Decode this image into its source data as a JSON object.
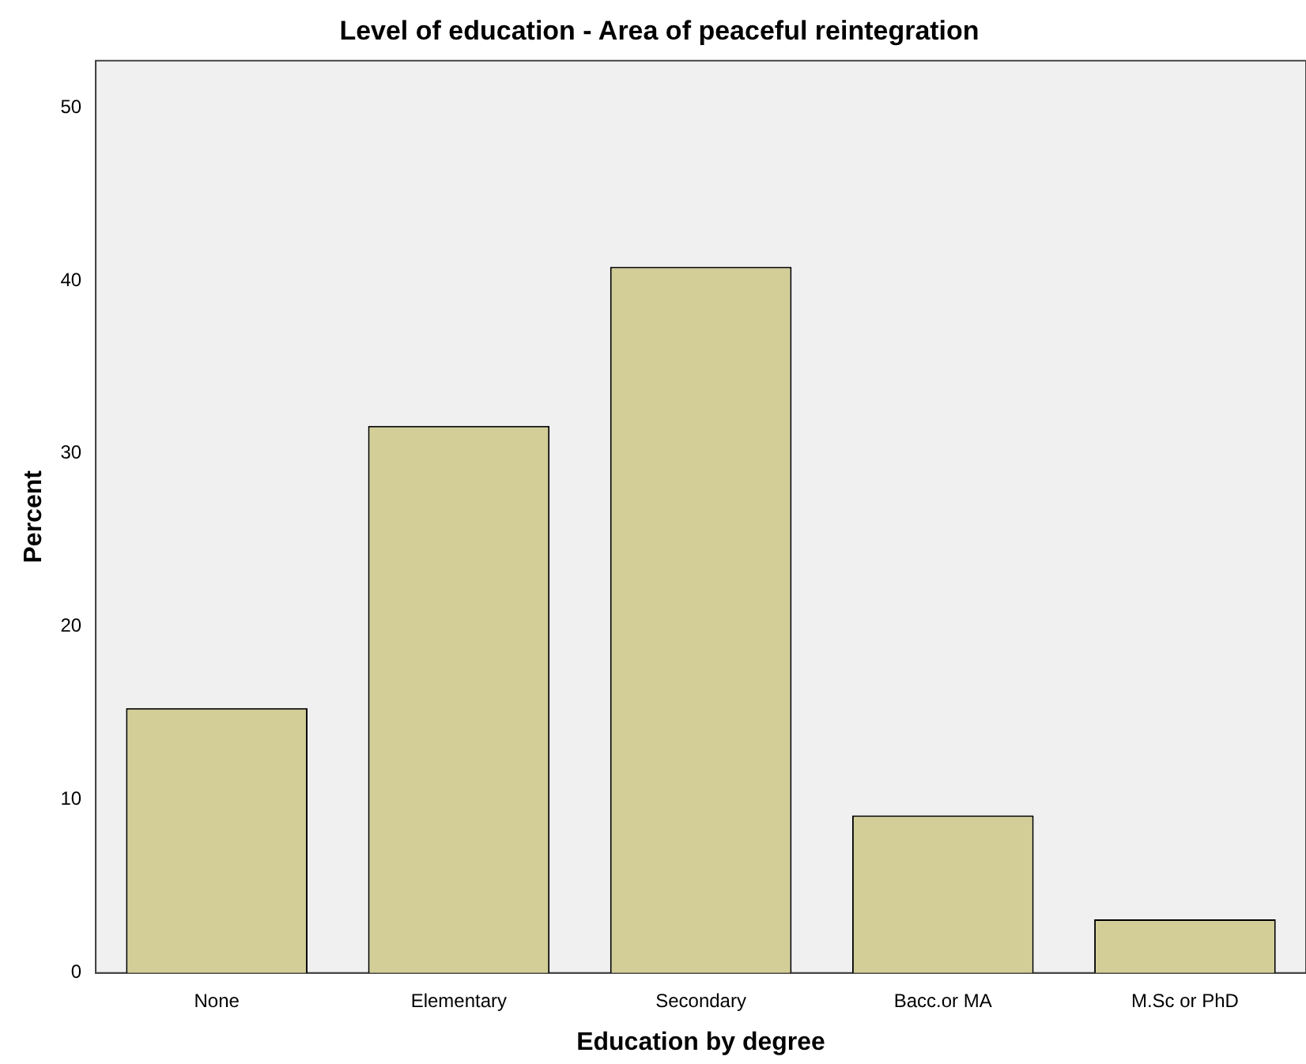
{
  "chart_data": {
    "type": "bar",
    "title": "Level of education - Area of peaceful reintegration",
    "xlabel": "Education by degree",
    "ylabel": "Percent",
    "categories": [
      "None",
      "Elementary",
      "Secondary",
      "Bacc.or MA",
      "M.Sc or PhD"
    ],
    "values": [
      15.3,
      31.6,
      40.8,
      9.1,
      3.1
    ],
    "color": "#d3ce97",
    "ylim": [
      0,
      52.7
    ],
    "yticks": [
      0,
      10,
      20,
      30,
      40,
      50
    ],
    "grid": false,
    "legend": false
  }
}
